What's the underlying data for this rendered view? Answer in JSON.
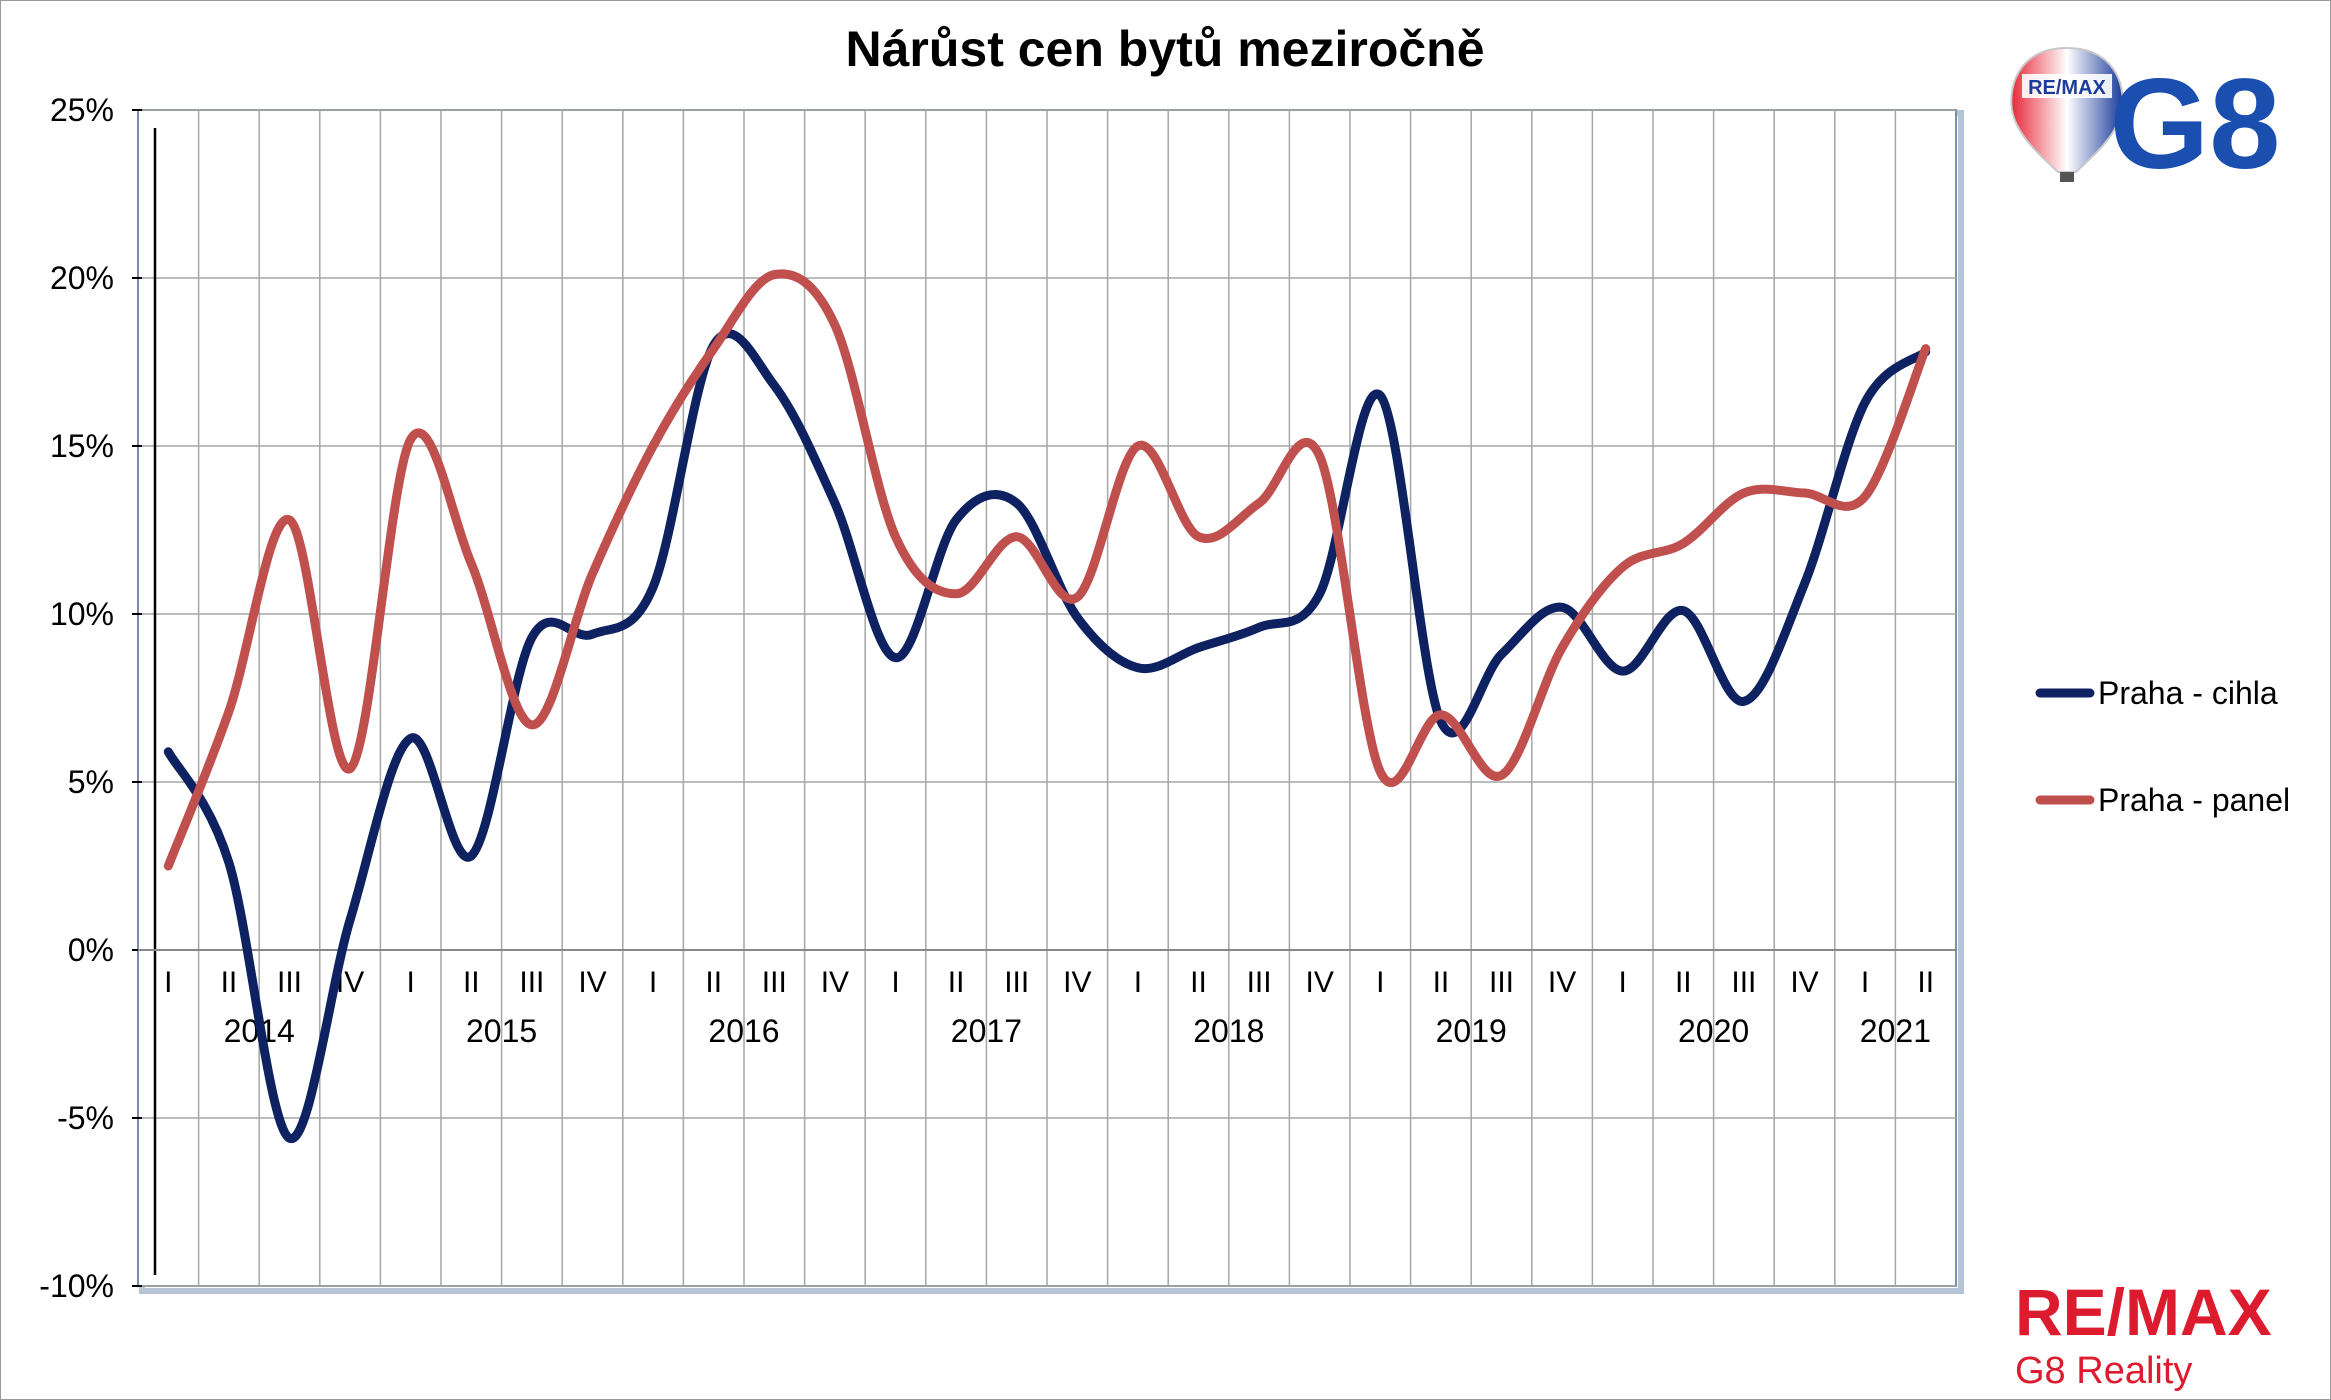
{
  "chart_data": {
    "type": "line",
    "title": "Nárůst cen bytů meziročně",
    "xlabel": "",
    "ylabel": "",
    "ylim": [
      -10,
      25
    ],
    "y_ticks": [
      "25%",
      "20%",
      "15%",
      "10%",
      "5%",
      "0%",
      "-5%",
      "-10%"
    ],
    "y_tick_values": [
      25,
      20,
      15,
      10,
      5,
      0,
      -5,
      -10
    ],
    "quarters": [
      "I",
      "II",
      "III",
      "IV",
      "I",
      "II",
      "III",
      "IV",
      "I",
      "II",
      "III",
      "IV",
      "I",
      "II",
      "III",
      "IV",
      "I",
      "II",
      "III",
      "IV",
      "I",
      "II",
      "III",
      "IV",
      "I",
      "II",
      "III",
      "IV",
      "I",
      "II"
    ],
    "years": [
      {
        "label": "2014",
        "start": 0,
        "end": 3
      },
      {
        "label": "2015",
        "start": 4,
        "end": 7
      },
      {
        "label": "2016",
        "start": 8,
        "end": 11
      },
      {
        "label": "2017",
        "start": 12,
        "end": 15
      },
      {
        "label": "2018",
        "start": 16,
        "end": 19
      },
      {
        "label": "2019",
        "start": 20,
        "end": 23
      },
      {
        "label": "2020",
        "start": 24,
        "end": 27
      },
      {
        "label": "2021",
        "start": 28,
        "end": 29
      }
    ],
    "grid": true,
    "legend_position": "right",
    "series": [
      {
        "name": "Praha - cihla",
        "color": "#0e2161",
        "values": [
          5.9,
          2.6,
          -5.6,
          0.9,
          6.3,
          2.8,
          9.3,
          9.4,
          10.8,
          18.0,
          16.8,
          13.3,
          8.7,
          12.8,
          13.3,
          9.9,
          8.4,
          9.0,
          9.6,
          10.6,
          16.5,
          6.8,
          8.8,
          10.2,
          8.3,
          10.1,
          7.4,
          10.9,
          16.3,
          17.8
        ]
      },
      {
        "name": "Praha - panel",
        "color": "#c0504d",
        "values": [
          2.5,
          7.1,
          12.8,
          5.4,
          15.2,
          11.5,
          6.7,
          11.2,
          15.0,
          17.9,
          20.1,
          18.6,
          12.3,
          10.6,
          12.3,
          10.5,
          15.0,
          12.3,
          13.3,
          14.7,
          5.3,
          7.0,
          5.2,
          9.0,
          11.4,
          12.1,
          13.6,
          13.6,
          13.5,
          17.9
        ]
      }
    ]
  },
  "branding": {
    "balloon_text": "RE/MAX",
    "g8_text": "G8",
    "logo_text": "RE/MAX",
    "subtitle_text": "G8 Reality",
    "red": "#dc1c2e",
    "blue": "#1a4fb0"
  }
}
